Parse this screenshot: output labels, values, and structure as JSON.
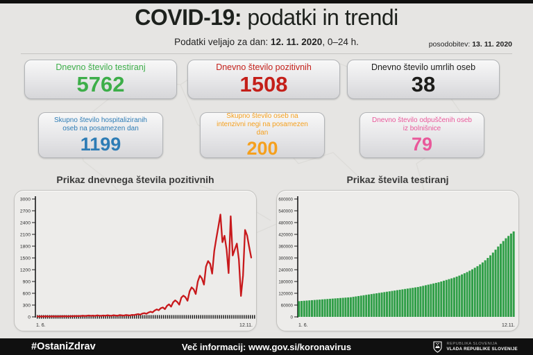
{
  "header": {
    "title_bold": "COVID-19:",
    "title_rest": " podatki in trendi",
    "subtitle_prefix": "Podatki veljajo za dan: ",
    "subtitle_date": "12. 11. 2020",
    "subtitle_suffix": ", 0–24 h.",
    "update_label": "posodobitev: ",
    "update_date": "13. 11. 2020"
  },
  "stat_cards": [
    {
      "label": "Dnevno število testiranj",
      "value": "5762",
      "color": "#3dae49"
    },
    {
      "label": "Dnevno število pozitivnih",
      "value": "1508",
      "color": "#c41f19"
    },
    {
      "label": "Dnevno število umrlih oseb",
      "value": "38",
      "color": "#1c1c1a"
    },
    {
      "label": "Skupno število hospitaliziranih oseb na posamezen dan",
      "value": "1199",
      "color": "#2d7cb5"
    },
    {
      "label": "Skupno število oseb na intenzivni negi na posamezen dan",
      "value": "200",
      "color": "#f5a01e"
    },
    {
      "label": "Dnevno število odpuščenih oseb iz bolnišnice",
      "value": "79",
      "color": "#e9589a"
    }
  ],
  "chart_data": [
    {
      "type": "line",
      "title": "Prikaz dnevnega števila pozitivnih",
      "xlabel": "",
      "ylabel": "",
      "ylim": [
        0,
        3000
      ],
      "yticks": [
        0,
        300,
        600,
        900,
        1200,
        1500,
        1800,
        2100,
        2400,
        2700,
        3000
      ],
      "xticks": [
        "1. 6.",
        "12.11."
      ],
      "color": "#c8191c",
      "grid": false,
      "legend": "none",
      "values": [
        10,
        7,
        12,
        9,
        15,
        11,
        8,
        14,
        10,
        13,
        9,
        16,
        12,
        18,
        14,
        11,
        20,
        15,
        24,
        18,
        25,
        20,
        30,
        22,
        28,
        35,
        26,
        32,
        24,
        38,
        30,
        27,
        35,
        29,
        40,
        33,
        28,
        42,
        36,
        30,
        45,
        38,
        34,
        48,
        40,
        36,
        52,
        45,
        60,
        70,
        55,
        85,
        95,
        80,
        110,
        130,
        115,
        160,
        190,
        170,
        220,
        240,
        195,
        280,
        320,
        260,
        370,
        420,
        380,
        310,
        490,
        540,
        500,
        410,
        650,
        750,
        700,
        580,
        900,
        1050,
        980,
        820,
        1280,
        1420,
        1350,
        1100,
        1675,
        2000,
        2290,
        2605,
        1900,
        2065,
        1716,
        1113,
        2561,
        1561,
        1716,
        1866,
        1457,
        533,
        1055,
        2211,
        2069,
        1783,
        1508
      ]
    },
    {
      "type": "bar",
      "title": "Prikaz števila testiranj",
      "xlabel": "",
      "ylabel": "",
      "ylim": [
        0,
        600000
      ],
      "yticks": [
        0,
        60000,
        120000,
        180000,
        240000,
        300000,
        360000,
        420000,
        480000,
        540000,
        600000
      ],
      "xticks": [
        "1. 6.",
        "12.11."
      ],
      "color": "#2f9e47",
      "grid": false,
      "legend": "none",
      "values": [
        80000,
        81000,
        82000,
        83000,
        84000,
        85000,
        86000,
        87000,
        88000,
        89000,
        90000,
        91000,
        92000,
        93000,
        94000,
        95000,
        96000,
        97000,
        98000,
        99000,
        100000,
        102000,
        104000,
        106000,
        108000,
        110000,
        112000,
        114000,
        116000,
        118000,
        120000,
        122000,
        124000,
        126000,
        128000,
        130000,
        132000,
        134000,
        136000,
        138000,
        140000,
        142000,
        144000,
        146000,
        148000,
        150000,
        152000,
        155000,
        158000,
        161000,
        164000,
        167000,
        170000,
        173000,
        176000,
        180000,
        184000,
        188000,
        192000,
        196000,
        200000,
        205000,
        210000,
        216000,
        222000,
        228000,
        235000,
        242000,
        250000,
        258000,
        267000,
        277000,
        288000,
        300000,
        313000,
        327000,
        342000,
        358000,
        372000,
        386000,
        400000,
        412000,
        424000,
        435000
      ]
    }
  ],
  "footer": {
    "hashtag": "#OstaniZdrav",
    "info": "Več informacij: www.gov.si/koronavirus",
    "gov_line1": "REPUBLIKA SLOVENIJA",
    "gov_line2": "VLADA REPUBLIKE SLOVENIJE"
  }
}
